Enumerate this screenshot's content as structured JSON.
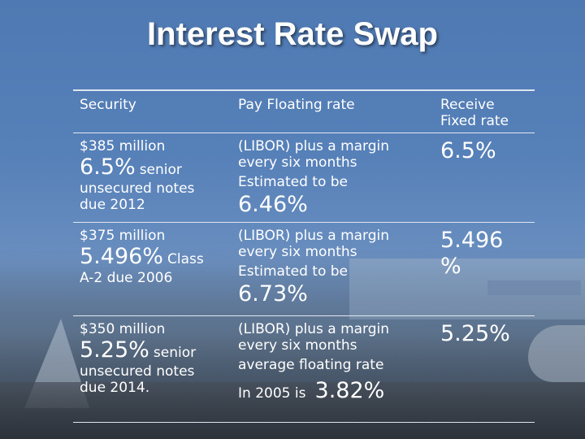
{
  "title": "Interest Rate Swap",
  "headers": {
    "security": "Security",
    "pay": "Pay Floating rate",
    "receive_line1": "Receive",
    "receive_line2": "Fixed rate"
  },
  "rows": [
    {
      "sec_amount": "$385 million",
      "sec_rate": "6.5%",
      "sec_rate_suffix": "senior",
      "sec_line3": "unsecured notes",
      "sec_line4": "due 2012",
      "pay_line1": "(LIBOR) plus a margin",
      "pay_line2": "every six months",
      "pay_line3": "Estimated to be",
      "pay_value": "6.46%",
      "receive": "6.5%"
    },
    {
      "sec_amount": "$375 million",
      "sec_rate": "5.496%",
      "sec_rate_suffix": "Class",
      "sec_line3": "A-2 due 2006",
      "pay_line1": "(LIBOR) plus a margin",
      "pay_line2": "every six months",
      "pay_line3": "Estimated to be",
      "pay_value": "6.73%",
      "receive_line1": "5.496",
      "receive_line2": "%"
    },
    {
      "sec_amount": "$350 million",
      "sec_rate": "5.25%",
      "sec_rate_suffix": "senior",
      "sec_line3": "unsecured notes",
      "sec_line4": "due 2014.",
      "pay_line1": "(LIBOR) plus a margin",
      "pay_line2": "every six months",
      "pay_line3": "average floating rate",
      "pay_prefix": "In 2005 is",
      "pay_value": "3.82%",
      "receive": "5.25%"
    }
  ]
}
